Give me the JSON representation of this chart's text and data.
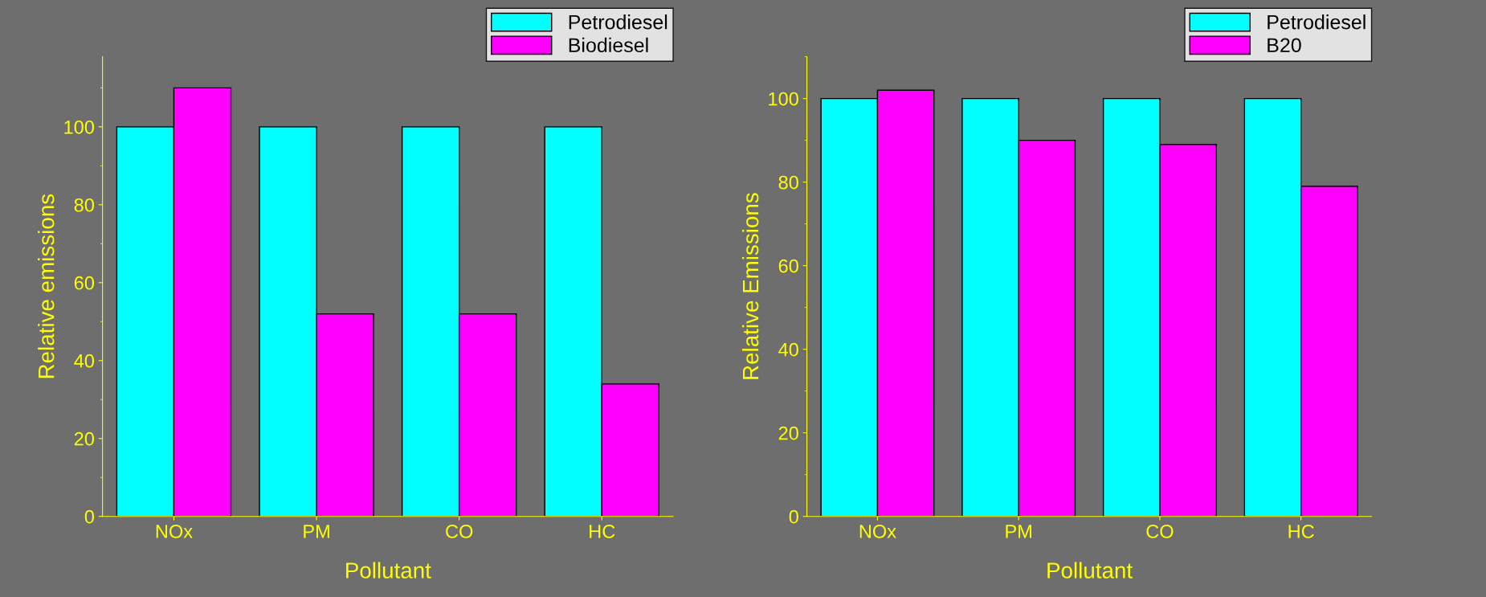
{
  "chart_data": [
    {
      "type": "bar",
      "xlabel": "Pollutant",
      "ylabel": "Relative emissions",
      "categories": [
        "NOx",
        "PM",
        "CO",
        "HC"
      ],
      "series": [
        {
          "name": "Petrodiesel",
          "color": "#00ffff",
          "values": [
            100,
            100,
            100,
            100
          ]
        },
        {
          "name": "Biodiesel",
          "color": "#ff00ff",
          "values": [
            110,
            52,
            52,
            34
          ]
        }
      ],
      "ylim": [
        0,
        118
      ],
      "yticks": [
        0,
        20,
        40,
        60,
        80,
        100
      ],
      "legend": "top right",
      "grid": false
    },
    {
      "type": "bar",
      "xlabel": "Pollutant",
      "ylabel": "Relative Emissions",
      "categories": [
        "NOx",
        "PM",
        "CO",
        "HC"
      ],
      "series": [
        {
          "name": "Petrodiesel",
          "color": "#00ffff",
          "values": [
            100,
            100,
            100,
            100
          ]
        },
        {
          "name": "B20",
          "color": "#ff00ff",
          "values": [
            102,
            90,
            89,
            79
          ]
        }
      ],
      "ylim": [
        0,
        110
      ],
      "yticks": [
        0,
        20,
        40,
        60,
        80,
        100
      ],
      "legend": "top right",
      "grid": false
    }
  ]
}
